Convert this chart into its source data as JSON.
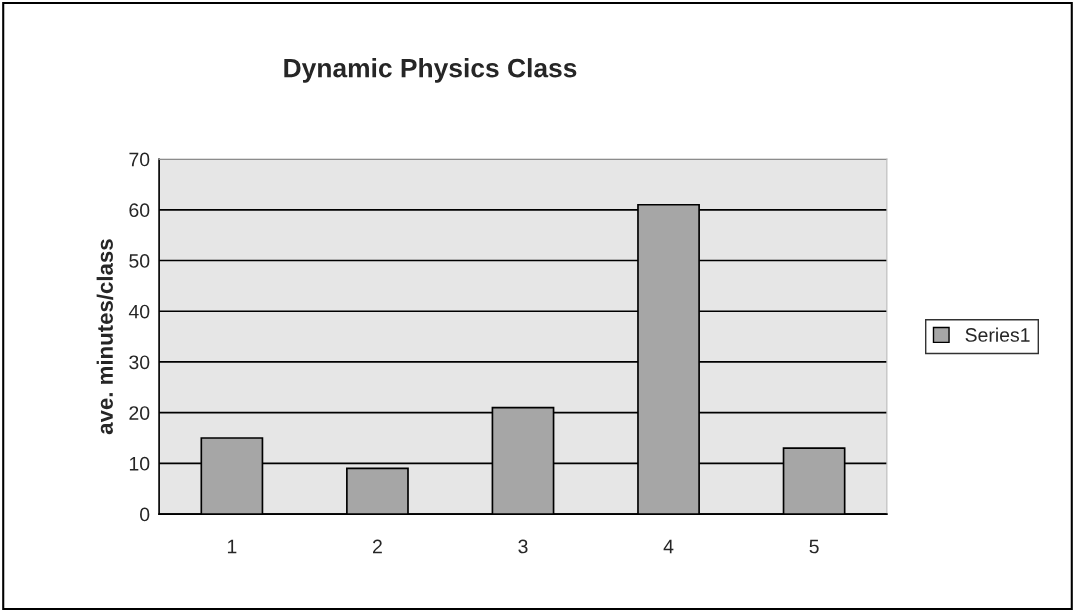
{
  "chart_data": {
    "type": "bar",
    "title": "Dynamic Physics Class",
    "ylabel": "ave. minutes/class",
    "categories": [
      "1",
      "2",
      "3",
      "4",
      "5"
    ],
    "series": [
      {
        "name": "Series1",
        "color": "#a6a6a6",
        "values": [
          15,
          9,
          21,
          61,
          13
        ]
      }
    ],
    "ylim": [
      0,
      70
    ],
    "yticks": [
      0,
      10,
      20,
      30,
      40,
      50,
      60,
      70
    ],
    "grid": "y",
    "legend": "right"
  }
}
